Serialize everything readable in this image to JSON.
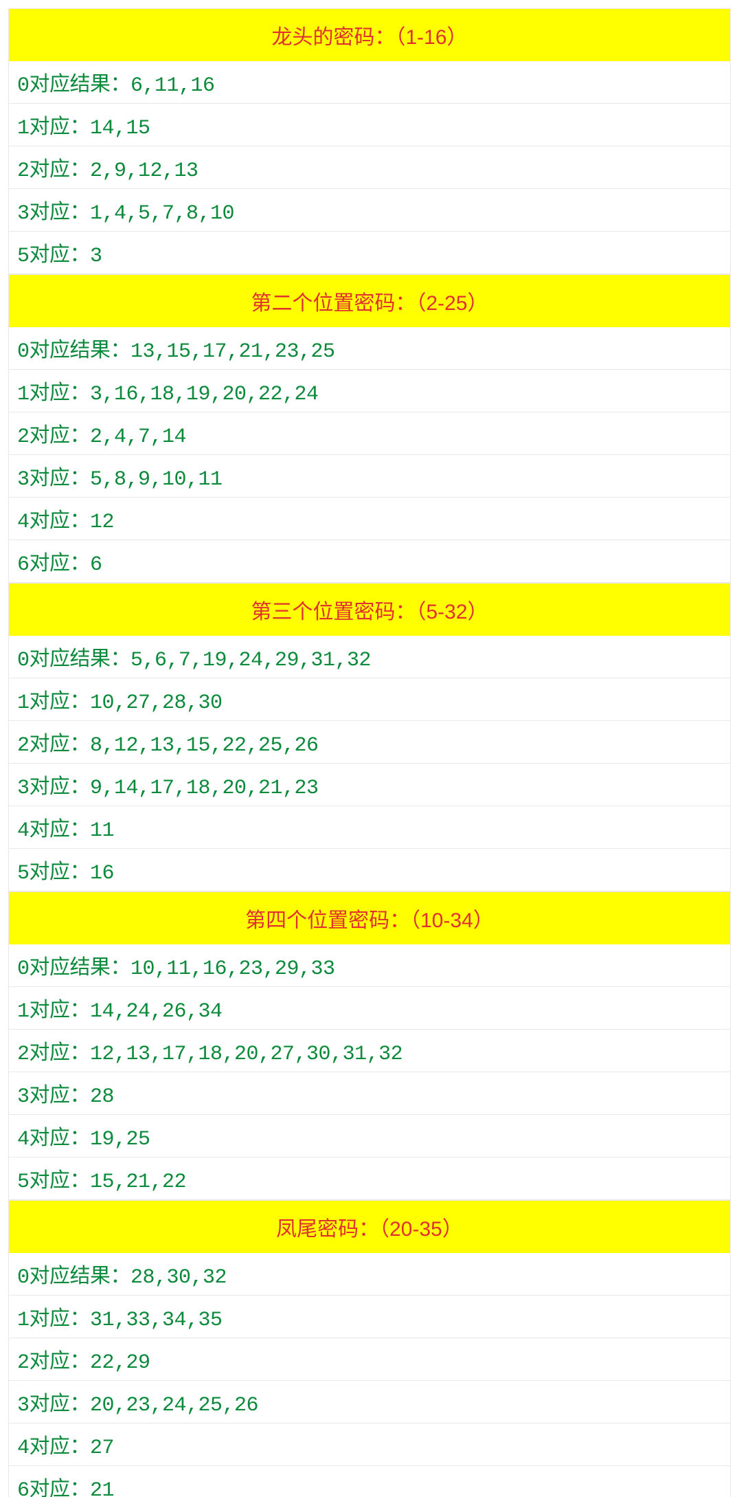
{
  "header_bg_color": "#ffff00",
  "header_text_color": "#e03030",
  "row_text_color": "#0a8a3a",
  "row_bg_color": "#ffffff",
  "border_color": "#e8e8e8",
  "font_size_header": 30,
  "font_size_row": 30,
  "sections": [
    {
      "title": "龙头的密码：（1-16）",
      "rows": [
        "0对应结果：6,11,16",
        "1对应：14,15",
        "2对应：2,9,12,13",
        "3对应：1,4,5,7,8,10",
        "5对应：3"
      ]
    },
    {
      "title": "第二个位置密码：（2-25）",
      "rows": [
        "0对应结果：13,15,17,21,23,25",
        "1对应：3,16,18,19,20,22,24",
        "2对应：2,4,7,14",
        "3对应：5,8,9,10,11",
        "4对应：12",
        "6对应：6"
      ]
    },
    {
      "title": "第三个位置密码：（5-32）",
      "rows": [
        "0对应结果：5,6,7,19,24,29,31,32",
        "1对应：10,27,28,30",
        "2对应：8,12,13,15,22,25,26",
        "3对应：9,14,17,18,20,21,23",
        "4对应：11",
        "5对应：16"
      ]
    },
    {
      "title": "第四个位置密码：（10-34）",
      "rows": [
        "0对应结果：10,11,16,23,29,33",
        "1对应：14,24,26,34",
        "2对应：12,13,17,18,20,27,30,31,32",
        "3对应：28",
        "4对应：19,25",
        "5对应：15,21,22"
      ]
    },
    {
      "title": "凤尾密码：（20-35）",
      "rows": [
        "0对应结果：28,30,32",
        "1对应：31,33,34,35",
        "2对应：22,29",
        "3对应：20,23,24,25,26",
        "4对应：27",
        "6对应：21"
      ]
    }
  ]
}
